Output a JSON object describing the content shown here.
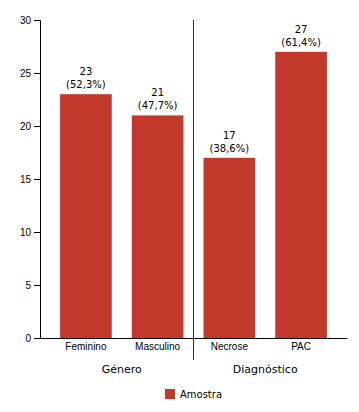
{
  "chart_data": {
    "type": "bar",
    "categories": [
      "Feminino",
      "Masculino",
      "Necrose",
      "PAC"
    ],
    "series": [
      {
        "name": "Amostra",
        "color": "#c0392b",
        "values": [
          23,
          21,
          17,
          27
        ],
        "shares": [
          52.3,
          47.7,
          38.6,
          61.4
        ],
        "share_labels": [
          "(52,3%)",
          "(47,7%)",
          "(38,6%)",
          "(61,4%)"
        ]
      }
    ],
    "groups": [
      {
        "name": "Género",
        "categories": [
          "Feminino",
          "Masculino"
        ]
      },
      {
        "name": "Diagnóstico",
        "categories": [
          "Necrose",
          "PAC"
        ]
      }
    ],
    "ylim": [
      0,
      30
    ],
    "yticks": [
      0,
      5,
      10,
      15,
      20,
      25,
      30
    ],
    "grid": false,
    "legend": "bottom",
    "data_labels": true
  }
}
